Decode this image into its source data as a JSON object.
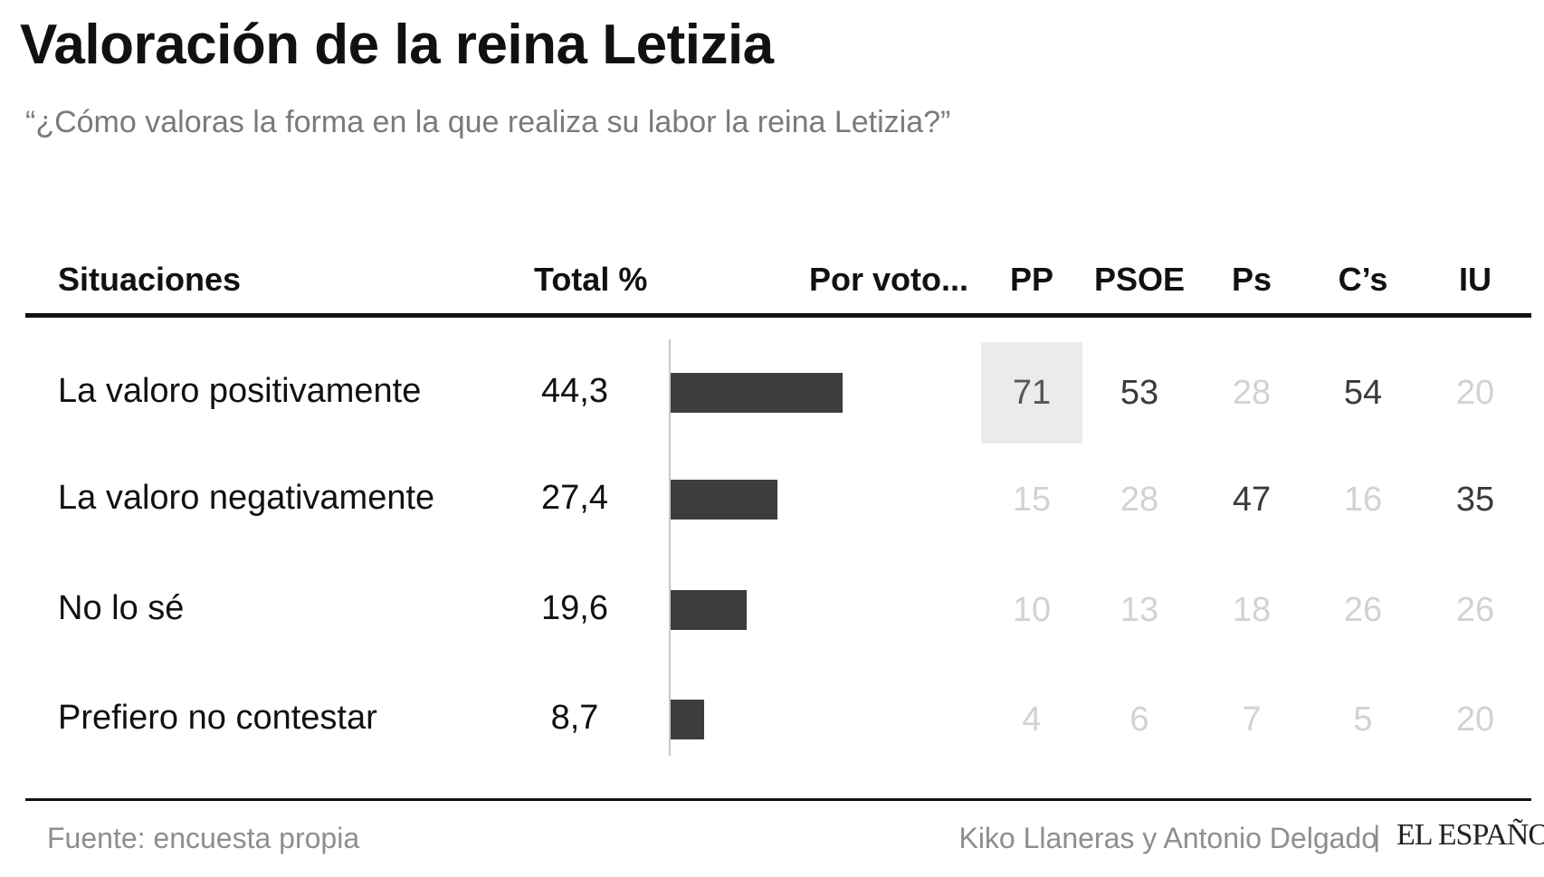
{
  "title": "Valoración de la reina Letizia",
  "subtitle": "“¿Cómo valoras la forma en la que realiza su labor la reina Letizia?”",
  "headers": {
    "situaciones": "Situaciones",
    "total": "Total %",
    "por_voto": "Por voto...",
    "parties": [
      "PP",
      "PSOE",
      "Ps",
      "C’s",
      "IU"
    ]
  },
  "chart_data": {
    "type": "table",
    "title": "Valoración de la reina Letizia",
    "subtitle": "“¿Cómo valoras la forma en la que realiza su labor la reina Letizia?”",
    "columns": [
      "Situaciones",
      "Total %",
      "PP",
      "PSOE",
      "Ps",
      "C’s",
      "IU"
    ],
    "rows": [
      {
        "label": "La valoro positivamente",
        "total": "44,3",
        "total_value": 44.3,
        "parties": [
          "71",
          "53",
          "28",
          "54",
          "20"
        ],
        "emphasis": [
          "highlight",
          "strong",
          "faint",
          "strong",
          "faint"
        ]
      },
      {
        "label": "La valoro negativamente",
        "total": "27,4",
        "total_value": 27.4,
        "parties": [
          "15",
          "28",
          "47",
          "16",
          "35"
        ],
        "emphasis": [
          "faint",
          "faint",
          "strong",
          "faint",
          "strong"
        ]
      },
      {
        "label": "No lo sé",
        "total": "19,6",
        "total_value": 19.6,
        "parties": [
          "10",
          "13",
          "18",
          "26",
          "26"
        ],
        "emphasis": [
          "faint",
          "faint",
          "faint",
          "faint",
          "faint"
        ]
      },
      {
        "label": "Prefiero no contestar",
        "total": "8,7",
        "total_value": 8.7,
        "parties": [
          "4",
          "6",
          "7",
          "5",
          "20"
        ],
        "emphasis": [
          "faint",
          "faint",
          "faint",
          "faint",
          "faint"
        ]
      }
    ],
    "bar_color": "#3d3d3d",
    "highlight_color": "#ebebeb",
    "strong_text_color": "#3a3a3a",
    "faint_text_color": "#d2d2d2"
  },
  "footer": {
    "source": "Fuente: encuesta propia",
    "authors": "Kiko Llaneras y Antonio Delgado",
    "separator": "|",
    "logo": "EL ESPAÑOL"
  }
}
